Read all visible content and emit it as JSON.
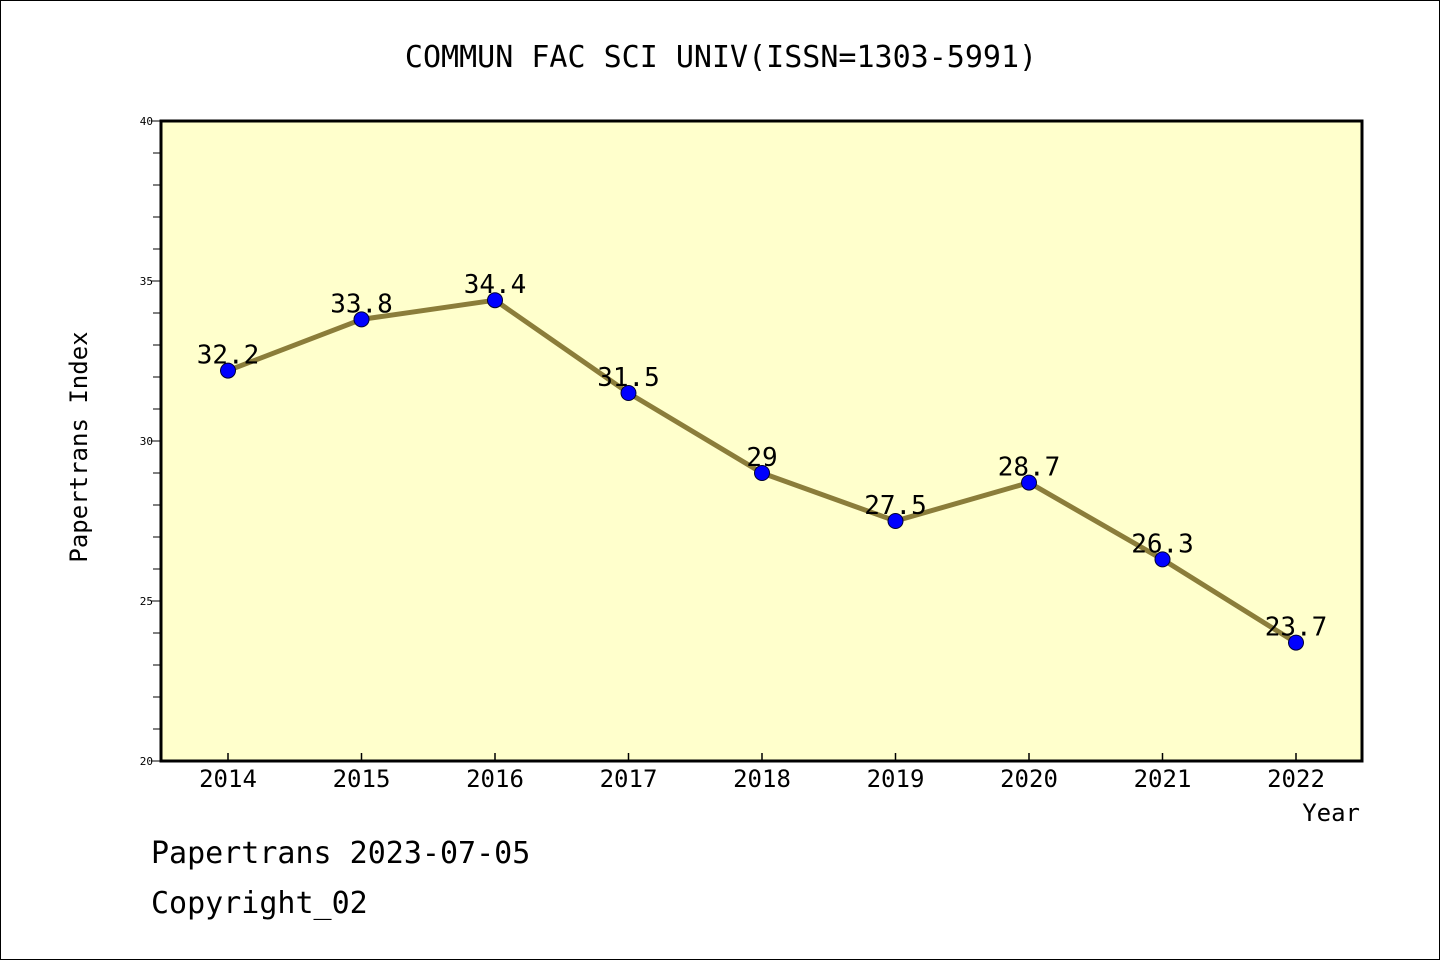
{
  "chart_data": {
    "type": "line",
    "title": "COMMUN FAC SCI UNIV(ISSN=1303-5991)",
    "xlabel": "Year",
    "ylabel": "Papertrans Index",
    "categories": [
      "2014",
      "2015",
      "2016",
      "2017",
      "2018",
      "2019",
      "2020",
      "2021",
      "2022"
    ],
    "series": [
      {
        "values": [
          32.2,
          33.8,
          34.4,
          31.5,
          29,
          27.5,
          28.7,
          26.3,
          23.7
        ],
        "data_labels": [
          "32.2",
          "33.8",
          "34.4",
          "31.5",
          "29",
          "27.5",
          "28.7",
          "26.3",
          "23.7"
        ]
      }
    ],
    "ylim": [
      20,
      40
    ],
    "yticks": [
      "20",
      "25",
      "30",
      "35",
      "40"
    ],
    "grid": false,
    "legend": "none",
    "colors": {
      "plot_background": "#ffffcc",
      "line": "#8b7d3a",
      "marker": "#0000ff"
    }
  },
  "footer": {
    "source": "Papertrans 2023-07-05",
    "copyright": "Copyright_02"
  }
}
